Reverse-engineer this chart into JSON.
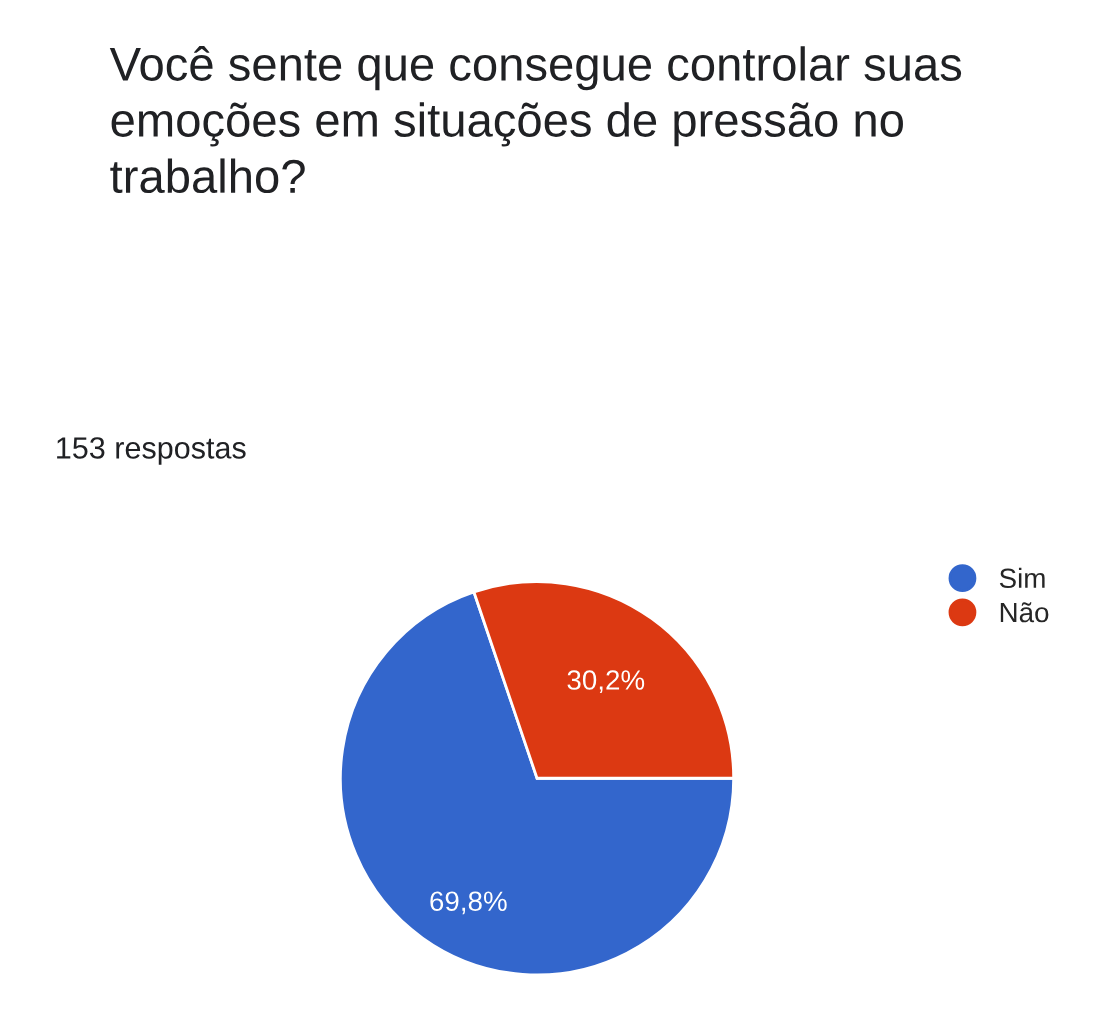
{
  "chart_data": {
    "type": "pie",
    "title": "Você sente que consegue controlar suas emoções em situações de pressão no trabalho?",
    "annotations": [
      "153 respostas"
    ],
    "categories": [
      "Sim",
      "Não"
    ],
    "values": [
      69.8,
      30.2
    ],
    "colors": [
      "#3366cc",
      "#dc3912"
    ],
    "value_labels": [
      "69,8%",
      "30,2%"
    ],
    "legend": "right"
  }
}
